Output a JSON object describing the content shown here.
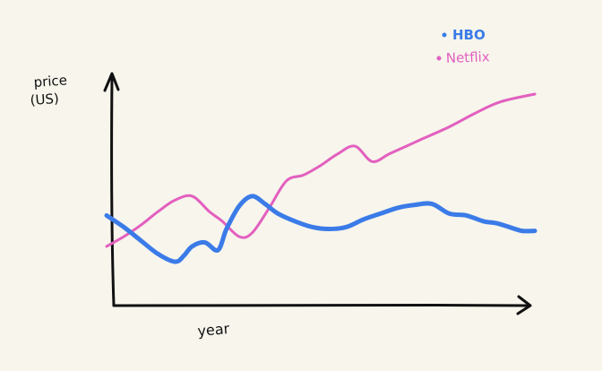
{
  "chart_data": {
    "type": "line",
    "title": "",
    "xlabel": "year",
    "ylabel_line1": "price",
    "ylabel_line2": "(US)",
    "xlim": [
      0,
      100
    ],
    "ylim": [
      0,
      100
    ],
    "grid": false,
    "legend_position": "top-right",
    "series": [
      {
        "name": "HBO",
        "color": "#3b7be8",
        "x": [
          0,
          4,
          8,
          12,
          16,
          18,
          20,
          23,
          26,
          28,
          31,
          34,
          37,
          40,
          44,
          48,
          52,
          56,
          60,
          64,
          68,
          72,
          76,
          80,
          84,
          88,
          91,
          94,
          97,
          100
        ],
        "y": [
          37,
          31,
          24,
          17,
          13,
          16,
          21,
          23,
          19,
          30,
          42,
          47,
          43,
          38,
          34,
          31,
          30,
          31,
          35,
          38,
          41,
          42.5,
          43,
          38,
          37,
          34,
          33,
          31,
          29,
          29
        ]
      },
      {
        "name": "Netflix",
        "color": "#e35fbf",
        "x": [
          0,
          4,
          8,
          12,
          16,
          20,
          24,
          27,
          31,
          34,
          38,
          42,
          46,
          50,
          54,
          58,
          62,
          66,
          70,
          74,
          80,
          86,
          92,
          100
        ],
        "y": [
          21,
          26,
          32,
          39,
          45,
          47,
          39,
          34,
          26,
          28,
          41,
          55,
          58,
          63,
          69,
          73,
          65,
          69,
          73,
          77,
          83,
          90,
          96,
          100
        ]
      }
    ]
  }
}
